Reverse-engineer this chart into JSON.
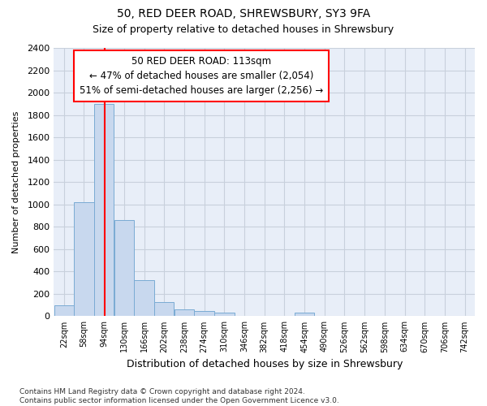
{
  "title1": "50, RED DEER ROAD, SHREWSBURY, SY3 9FA",
  "title2": "Size of property relative to detached houses in Shrewsbury",
  "xlabel": "Distribution of detached houses by size in Shrewsbury",
  "ylabel": "Number of detached properties",
  "footnote": "Contains HM Land Registry data © Crown copyright and database right 2024.\nContains public sector information licensed under the Open Government Licence v3.0.",
  "bin_edges": [
    22,
    58,
    94,
    130,
    166,
    202,
    238,
    274,
    310,
    346,
    382,
    418,
    454,
    490,
    526,
    562,
    598,
    634,
    670,
    706,
    742
  ],
  "bar_heights": [
    100,
    1020,
    1900,
    860,
    320,
    130,
    60,
    50,
    35,
    0,
    0,
    0,
    30,
    0,
    0,
    0,
    0,
    0,
    0,
    0
  ],
  "bar_color": "#c8d8ee",
  "bar_edgecolor": "#7aabd4",
  "vline_x": 113,
  "vline_color": "red",
  "ylim": [
    0,
    2400
  ],
  "yticks": [
    0,
    200,
    400,
    600,
    800,
    1000,
    1200,
    1400,
    1600,
    1800,
    2000,
    2200,
    2400
  ],
  "annotation_text": "50 RED DEER ROAD: 113sqm\n← 47% of detached houses are smaller (2,054)\n51% of semi-detached houses are larger (2,256) →",
  "annotation_box_color": "red",
  "grid_color": "#c8d0dc",
  "bg_color": "#e8eef8"
}
